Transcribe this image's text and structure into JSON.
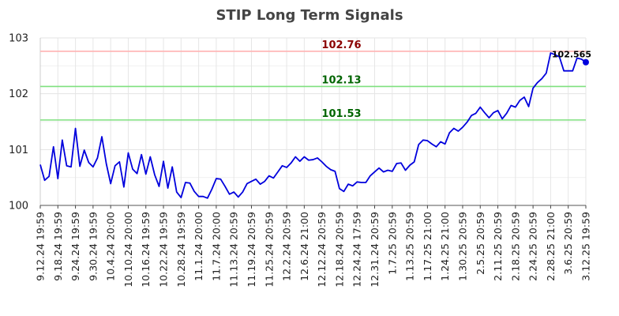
{
  "chart_data": {
    "type": "line",
    "title": "STIP Long Term Signals",
    "xlabel": "",
    "ylabel": "",
    "ylim": [
      100,
      103
    ],
    "yticks": [
      "100",
      "101",
      "102",
      "103"
    ],
    "grid": true,
    "x_tick_labels": [
      "9.12.24 19:59",
      "9.18.24 19:59",
      "9.24.24 19:59",
      "9.30.24 19:59",
      "10.4.24 20:00",
      "10.10.24 20:00",
      "10.16.24 19:59",
      "10.22.24 19:59",
      "10.28.24 19:59",
      "11.1.24 20:00",
      "11.7.24 20:00",
      "11.13.24 20:59",
      "11.19.24 20:59",
      "11.25.24 20:59",
      "12.2.24 20:59",
      "12.6.24 21:00",
      "12.12.24 20:59",
      "12.18.24 20:59",
      "12.24.24 17:59",
      "12.31.24 20:59",
      "1.7.25 20:59",
      "1.13.25 20:59",
      "1.17.25 21:00",
      "1.24.25 21:00",
      "1.30.25 20:59",
      "2.5.25 20:59",
      "2.11.25 20:59",
      "2.18.25 20:59",
      "2.24.25 20:59",
      "2.28.25 21:00",
      "3.6.25 20:59",
      "3.12.25 19:59"
    ],
    "reference_lines": [
      {
        "value": 102.76,
        "label": "102.76",
        "line_color": "#ffb3b3",
        "text_color": "#8b0000"
      },
      {
        "value": 102.13,
        "label": "102.13",
        "line_color": "#7fe07f",
        "text_color": "#006400"
      },
      {
        "value": 101.53,
        "label": "101.53",
        "line_color": "#7fe07f",
        "text_color": "#006400"
      }
    ],
    "last_value_label": "102.565",
    "series": [
      {
        "color": "#0000dd",
        "values": [
          100.73,
          100.45,
          100.52,
          101.05,
          100.48,
          101.17,
          100.71,
          100.69,
          101.38,
          100.7,
          100.99,
          100.77,
          100.69,
          100.85,
          101.23,
          100.75,
          100.39,
          100.71,
          100.78,
          100.33,
          100.94,
          100.65,
          100.57,
          100.91,
          100.56,
          100.87,
          100.55,
          100.34,
          100.79,
          100.31,
          100.69,
          100.24,
          100.14,
          100.41,
          100.4,
          100.25,
          100.16,
          100.16,
          100.13,
          100.29,
          100.48,
          100.47,
          100.34,
          100.2,
          100.24,
          100.15,
          100.24,
          100.39,
          100.43,
          100.47,
          100.38,
          100.43,
          100.53,
          100.49,
          100.6,
          100.71,
          100.68,
          100.76,
          100.87,
          100.79,
          100.87,
          100.81,
          100.82,
          100.85,
          100.78,
          100.7,
          100.64,
          100.61,
          100.3,
          100.25,
          100.38,
          100.35,
          100.42,
          100.41,
          100.41,
          100.53,
          100.6,
          100.67,
          100.6,
          100.63,
          100.61,
          100.75,
          100.76,
          100.63,
          100.72,
          100.78,
          101.09,
          101.17,
          101.16,
          101.1,
          101.05,
          101.14,
          101.1,
          101.3,
          101.38,
          101.33,
          101.4,
          101.49,
          101.61,
          101.65,
          101.76,
          101.66,
          101.57,
          101.66,
          101.7,
          101.55,
          101.65,
          101.79,
          101.76,
          101.88,
          101.94,
          101.77,
          102.1,
          102.2,
          102.27,
          102.37,
          102.73,
          102.7,
          102.66,
          102.41,
          102.41,
          102.41,
          102.64,
          102.62,
          102.565
        ]
      }
    ]
  }
}
